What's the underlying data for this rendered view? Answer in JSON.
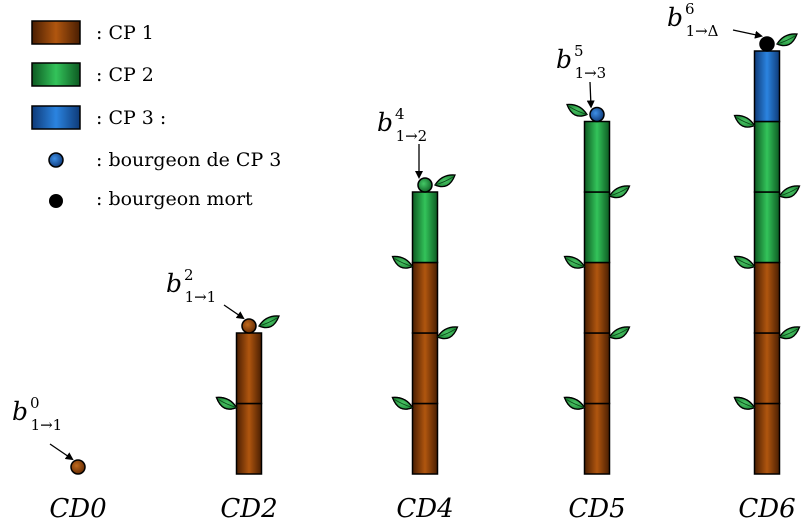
{
  "legend": {
    "cp1": ": CP 1",
    "cp2": ": CP 2",
    "cp3": ": CP 3 :",
    "bud_cp3": ": bourgeon de CP 3",
    "bud_dead": ": bourgeon mort"
  },
  "colors": {
    "cp1": "#8a3d08",
    "cp2": "#1f9a3f",
    "cp3": "#1f64b8",
    "bud_cp3": "#1f64b8",
    "bud_dead": "#000000",
    "leaf": "#2ea84a"
  },
  "stages": [
    {
      "label": "CD0",
      "segments": [],
      "bud": {
        "type": "cp1",
        "label_main": "b",
        "label_sub": "1→1",
        "label_sup": "0"
      }
    },
    {
      "label": "CD2",
      "segments": [
        "cp1",
        "cp1"
      ],
      "bud": {
        "type": "cp1",
        "label_main": "b",
        "label_sub": "1→1",
        "label_sup": "2"
      }
    },
    {
      "label": "CD4",
      "segments": [
        "cp1",
        "cp1",
        "cp1",
        "cp2"
      ],
      "bud": {
        "type": "cp2",
        "label_main": "b",
        "label_sub": "1→2",
        "label_sup": "4"
      }
    },
    {
      "label": "CD5",
      "segments": [
        "cp1",
        "cp1",
        "cp1",
        "cp2",
        "cp2"
      ],
      "bud": {
        "type": "bud_cp3",
        "label_main": "b",
        "label_sub": "1→3",
        "label_sup": "5"
      }
    },
    {
      "label": "CD6",
      "segments": [
        "cp1",
        "cp1",
        "cp1",
        "cp2",
        "cp2",
        "cp3"
      ],
      "bud": {
        "type": "bud_dead",
        "label_main": "b",
        "label_sub": "1→Δ",
        "label_sup": "6"
      }
    }
  ]
}
